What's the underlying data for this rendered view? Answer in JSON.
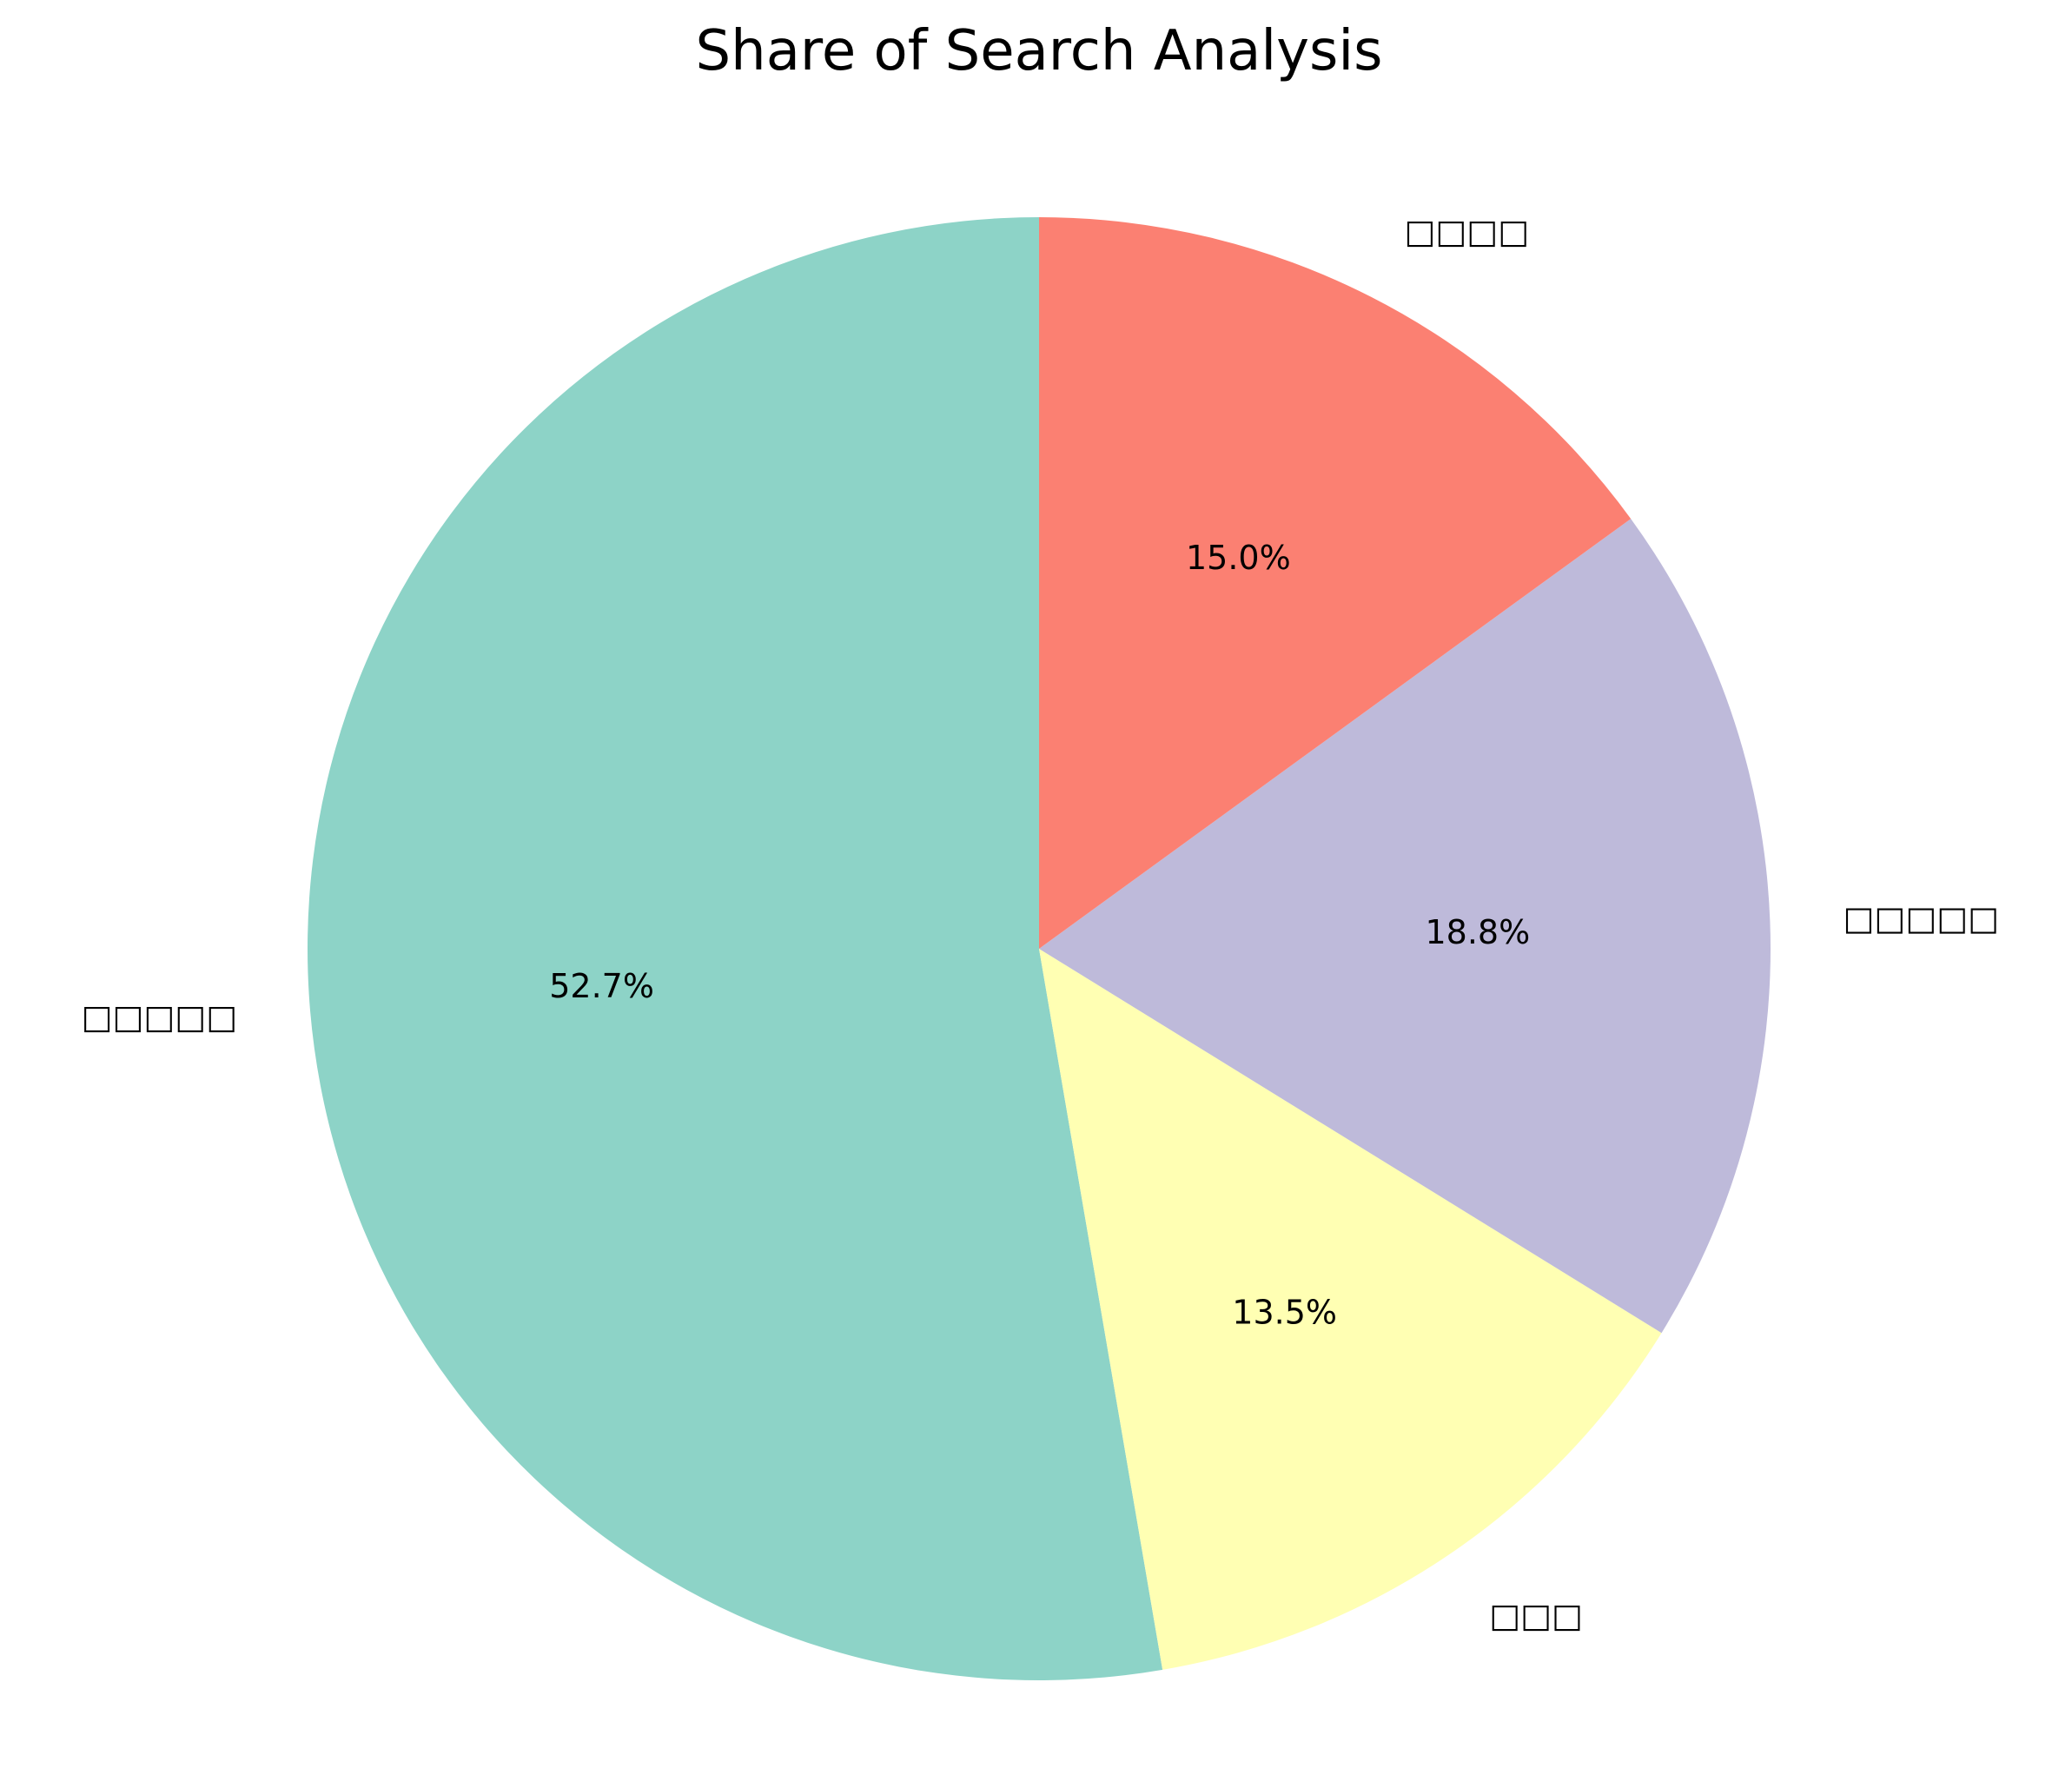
{
  "chart_data": {
    "type": "pie",
    "title": "Share of Search Analysis",
    "start_angle_deg": 90,
    "direction": "counterclockwise",
    "slices": [
      {
        "label": "□□□□□",
        "value": 52.7,
        "pct_label": "52.7%",
        "color": "#8dd3c7"
      },
      {
        "label": "□□□",
        "value": 13.5,
        "pct_label": "13.5%",
        "color": "#ffffb3"
      },
      {
        "label": "□□□□□",
        "value": 18.8,
        "pct_label": "18.8%",
        "color": "#bebada"
      },
      {
        "label": "□□□□",
        "value": 15.0,
        "pct_label": "15.0%",
        "color": "#fb8072"
      }
    ]
  }
}
